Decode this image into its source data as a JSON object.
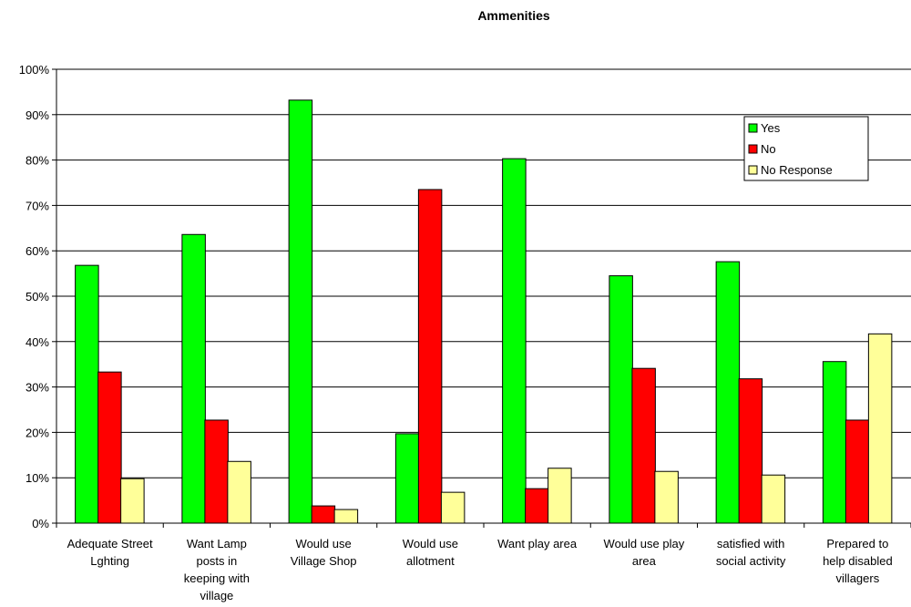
{
  "chart_data": {
    "type": "bar",
    "title": "Ammenities",
    "xlabel": "",
    "ylabel": "",
    "ylim": [
      0,
      100
    ],
    "y_tick_labels": [
      "0%",
      "10%",
      "20%",
      "30%",
      "40%",
      "50%",
      "60%",
      "70%",
      "80%",
      "90%",
      "100%"
    ],
    "categories": [
      [
        "Adequate Street",
        "Lghting"
      ],
      [
        "Want Lamp",
        "posts in",
        "keeping with",
        "village"
      ],
      [
        "Would use",
        "Village Shop"
      ],
      [
        "Would use",
        "allotment"
      ],
      [
        "Want play area"
      ],
      [
        "Would use play",
        "area"
      ],
      [
        "satisfied with",
        "social activity"
      ],
      [
        "Prepared to",
        "help disabled",
        "villagers"
      ]
    ],
    "series": [
      {
        "name": "Yes",
        "color": "#00ff00",
        "values": [
          56.8,
          63.6,
          93.2,
          19.7,
          80.3,
          54.5,
          57.6,
          35.6
        ]
      },
      {
        "name": "No",
        "color": "#ff0000",
        "values": [
          33.3,
          22.7,
          3.8,
          73.5,
          7.6,
          34.1,
          31.8,
          22.7
        ]
      },
      {
        "name": "No Response",
        "color": "#ffff99",
        "values": [
          9.8,
          13.6,
          3.0,
          6.8,
          12.1,
          11.4,
          10.6,
          41.7
        ]
      }
    ],
    "grid": true,
    "legend_position": "top-right"
  }
}
